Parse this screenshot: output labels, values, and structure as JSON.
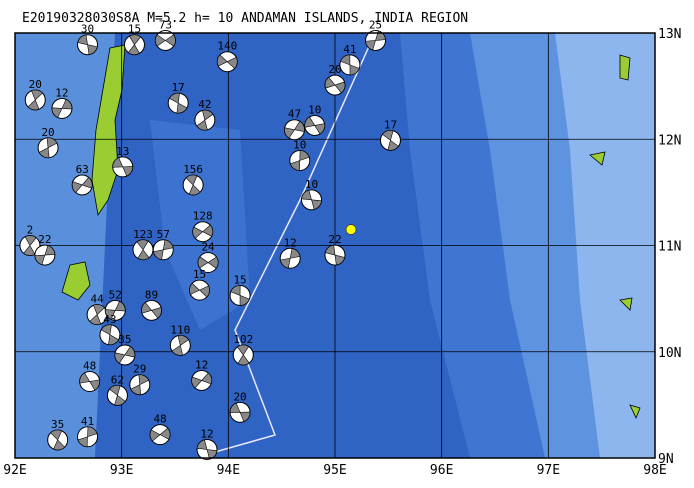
{
  "title": "E20190328030S8A M=5.2 h= 10 ANDAMAN ISLANDS, INDIA REGION",
  "map": {
    "lonlim": [
      92,
      98
    ],
    "latlim": [
      9,
      13
    ],
    "lonticks": [
      {
        "value": 92,
        "label": "92E"
      },
      {
        "value": 93,
        "label": "93E"
      },
      {
        "value": 94,
        "label": "94E"
      },
      {
        "value": 95,
        "label": "95E"
      },
      {
        "value": 96,
        "label": "96E"
      },
      {
        "value": 97,
        "label": "97E"
      },
      {
        "value": 98,
        "label": "98E"
      }
    ],
    "latticks": [
      {
        "value": 13,
        "label": "13N"
      },
      {
        "value": 12,
        "label": "12N"
      },
      {
        "value": 11,
        "label": "11N"
      },
      {
        "value": 10,
        "label": "10N"
      },
      {
        "value": 9,
        "label": "9N"
      }
    ]
  },
  "epicenter": {
    "lon": 95.15,
    "lat": 11.15,
    "color": "#ffff00"
  },
  "events": [
    {
      "lon": 93.41,
      "lat": 12.93,
      "depth": "73"
    },
    {
      "lon": 92.68,
      "lat": 12.89,
      "depth": "30"
    },
    {
      "lon": 93.12,
      "lat": 12.89,
      "depth": "15"
    },
    {
      "lon": 95.38,
      "lat": 12.93,
      "depth": "25"
    },
    {
      "lon": 93.99,
      "lat": 12.73,
      "depth": "140"
    },
    {
      "lon": 95.14,
      "lat": 12.7,
      "depth": "41"
    },
    {
      "lon": 92.19,
      "lat": 12.37,
      "depth": "20"
    },
    {
      "lon": 92.44,
      "lat": 12.29,
      "depth": "12"
    },
    {
      "lon": 95.0,
      "lat": 12.51,
      "depth": "20"
    },
    {
      "lon": 93.53,
      "lat": 12.34,
      "depth": "17"
    },
    {
      "lon": 93.78,
      "lat": 12.18,
      "depth": "42"
    },
    {
      "lon": 94.62,
      "lat": 12.09,
      "depth": "47"
    },
    {
      "lon": 94.81,
      "lat": 12.13,
      "depth": "10"
    },
    {
      "lon": 95.52,
      "lat": 11.99,
      "depth": "17"
    },
    {
      "lon": 92.31,
      "lat": 11.92,
      "depth": "20"
    },
    {
      "lon": 92.63,
      "lat": 11.57,
      "depth": "63"
    },
    {
      "lon": 93.01,
      "lat": 11.74,
      "depth": "13"
    },
    {
      "lon": 93.67,
      "lat": 11.57,
      "depth": "156"
    },
    {
      "lon": 94.67,
      "lat": 11.8,
      "depth": "10"
    },
    {
      "lon": 93.76,
      "lat": 11.13,
      "depth": "128"
    },
    {
      "lon": 94.78,
      "lat": 11.43,
      "depth": "10"
    },
    {
      "lon": 93.2,
      "lat": 10.96,
      "depth": "123"
    },
    {
      "lon": 93.39,
      "lat": 10.96,
      "depth": "57"
    },
    {
      "lon": 93.81,
      "lat": 10.84,
      "depth": "24"
    },
    {
      "lon": 95.0,
      "lat": 10.91,
      "depth": "22"
    },
    {
      "lon": 92.14,
      "lat": 11.0,
      "depth": "2"
    },
    {
      "lon": 92.28,
      "lat": 10.91,
      "depth": "22"
    },
    {
      "lon": 93.73,
      "lat": 10.58,
      "depth": "15"
    },
    {
      "lon": 94.11,
      "lat": 10.53,
      "depth": "15"
    },
    {
      "lon": 92.77,
      "lat": 10.35,
      "depth": "44"
    },
    {
      "lon": 92.94,
      "lat": 10.39,
      "depth": "52"
    },
    {
      "lon": 93.28,
      "lat": 10.39,
      "depth": "89"
    },
    {
      "lon": 92.89,
      "lat": 10.16,
      "depth": "43"
    },
    {
      "lon": 93.55,
      "lat": 10.06,
      "depth": "110"
    },
    {
      "lon": 93.03,
      "lat": 9.97,
      "depth": "35"
    },
    {
      "lon": 92.7,
      "lat": 9.72,
      "depth": "48"
    },
    {
      "lon": 92.96,
      "lat": 9.59,
      "depth": "62"
    },
    {
      "lon": 93.17,
      "lat": 9.69,
      "depth": "29"
    },
    {
      "lon": 93.75,
      "lat": 9.73,
      "depth": "12"
    },
    {
      "lon": 94.11,
      "lat": 9.43,
      "depth": "20"
    },
    {
      "lon": 92.4,
      "lat": 9.17,
      "depth": "35"
    },
    {
      "lon": 92.68,
      "lat": 9.2,
      "depth": "41"
    },
    {
      "lon": 93.36,
      "lat": 9.22,
      "depth": "48"
    },
    {
      "lon": 93.8,
      "lat": 9.08,
      "depth": "12"
    },
    {
      "lon": 94.14,
      "lat": 9.97,
      "depth": "102"
    },
    {
      "lon": 94.58,
      "lat": 10.88,
      "depth": "12"
    }
  ]
}
